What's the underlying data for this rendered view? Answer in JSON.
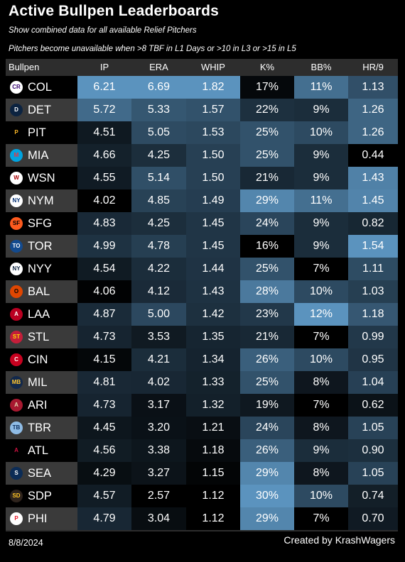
{
  "title": "Active Bullpen Leaderboards",
  "subtitle": "Show combined data for all available Relief Pitchers",
  "note": "Pitchers become unavailable when >8 TBF in L1 Days or >10 in L3 or >15 in L5",
  "footer": {
    "date": "8/8/2024",
    "credit": "Created by KrashWagers"
  },
  "chart_data": {
    "type": "table",
    "columns": [
      "Bullpen",
      "IP",
      "ERA",
      "WHIP",
      "K%",
      "BB%",
      "HR/9"
    ],
    "color_scale": {
      "low": "#000000",
      "high": "#5b93be",
      "mid": "#22384a"
    },
    "rows": [
      {
        "team": "COL",
        "logo": "rockies-logo",
        "IP": "6.21",
        "ERA": "6.69",
        "WHIP": "1.82",
        "K%": "17%",
        "BB%": "11%",
        "HR/9": "1.13"
      },
      {
        "team": "DET",
        "logo": "tigers-logo",
        "IP": "5.72",
        "ERA": "5.33",
        "WHIP": "1.57",
        "K%": "22%",
        "BB%": "9%",
        "HR/9": "1.26"
      },
      {
        "team": "PIT",
        "logo": "pirates-logo",
        "IP": "4.51",
        "ERA": "5.05",
        "WHIP": "1.53",
        "K%": "25%",
        "BB%": "10%",
        "HR/9": "1.26"
      },
      {
        "team": "MIA",
        "logo": "marlins-logo",
        "IP": "4.66",
        "ERA": "4.25",
        "WHIP": "1.50",
        "K%": "25%",
        "BB%": "9%",
        "HR/9": "0.44"
      },
      {
        "team": "WSN",
        "logo": "nationals-logo",
        "IP": "4.55",
        "ERA": "5.14",
        "WHIP": "1.50",
        "K%": "21%",
        "BB%": "9%",
        "HR/9": "1.43"
      },
      {
        "team": "NYM",
        "logo": "mets-logo",
        "IP": "4.02",
        "ERA": "4.85",
        "WHIP": "1.49",
        "K%": "29%",
        "BB%": "11%",
        "HR/9": "1.45"
      },
      {
        "team": "SFG",
        "logo": "giants-logo",
        "IP": "4.83",
        "ERA": "4.25",
        "WHIP": "1.45",
        "K%": "24%",
        "BB%": "9%",
        "HR/9": "0.82"
      },
      {
        "team": "TOR",
        "logo": "bluejays-logo",
        "IP": "4.99",
        "ERA": "4.78",
        "WHIP": "1.45",
        "K%": "16%",
        "BB%": "9%",
        "HR/9": "1.54"
      },
      {
        "team": "NYY",
        "logo": "yankees-logo",
        "IP": "4.54",
        "ERA": "4.22",
        "WHIP": "1.44",
        "K%": "25%",
        "BB%": "7%",
        "HR/9": "1.11"
      },
      {
        "team": "BAL",
        "logo": "orioles-logo",
        "IP": "4.06",
        "ERA": "4.12",
        "WHIP": "1.43",
        "K%": "28%",
        "BB%": "10%",
        "HR/9": "1.03"
      },
      {
        "team": "LAA",
        "logo": "angels-logo",
        "IP": "4.87",
        "ERA": "5.00",
        "WHIP": "1.42",
        "K%": "23%",
        "BB%": "12%",
        "HR/9": "1.18"
      },
      {
        "team": "STL",
        "logo": "cardinals-logo",
        "IP": "4.73",
        "ERA": "3.53",
        "WHIP": "1.35",
        "K%": "21%",
        "BB%": "7%",
        "HR/9": "0.99"
      },
      {
        "team": "CIN",
        "logo": "reds-logo",
        "IP": "4.15",
        "ERA": "4.21",
        "WHIP": "1.34",
        "K%": "26%",
        "BB%": "10%",
        "HR/9": "0.95"
      },
      {
        "team": "MIL",
        "logo": "brewers-logo",
        "IP": "4.81",
        "ERA": "4.02",
        "WHIP": "1.33",
        "K%": "25%",
        "BB%": "8%",
        "HR/9": "1.04"
      },
      {
        "team": "ARI",
        "logo": "diamondbacks-logo",
        "IP": "4.73",
        "ERA": "3.17",
        "WHIP": "1.32",
        "K%": "19%",
        "BB%": "7%",
        "HR/9": "0.62"
      },
      {
        "team": "TBR",
        "logo": "rays-logo",
        "IP": "4.45",
        "ERA": "3.20",
        "WHIP": "1.21",
        "K%": "24%",
        "BB%": "8%",
        "HR/9": "1.05"
      },
      {
        "team": "ATL",
        "logo": "braves-logo",
        "IP": "4.56",
        "ERA": "3.38",
        "WHIP": "1.18",
        "K%": "26%",
        "BB%": "9%",
        "HR/9": "0.90"
      },
      {
        "team": "SEA",
        "logo": "mariners-logo",
        "IP": "4.29",
        "ERA": "3.27",
        "WHIP": "1.15",
        "K%": "29%",
        "BB%": "8%",
        "HR/9": "1.05"
      },
      {
        "team": "SDP",
        "logo": "padres-logo",
        "IP": "4.57",
        "ERA": "2.57",
        "WHIP": "1.12",
        "K%": "30%",
        "BB%": "10%",
        "HR/9": "0.74"
      },
      {
        "team": "PHI",
        "logo": "phillies-logo",
        "IP": "4.79",
        "ERA": "3.04",
        "WHIP": "1.12",
        "K%": "29%",
        "BB%": "7%",
        "HR/9": "0.70"
      }
    ]
  },
  "logo_colors": {
    "COL": {
      "bg": "#ffffff",
      "fg": "#33006f",
      "glyph": "CR"
    },
    "DET": {
      "bg": "#0c2340",
      "fg": "#ffffff",
      "glyph": "D"
    },
    "PIT": {
      "bg": "#000000",
      "fg": "#fdb827",
      "glyph": "P"
    },
    "MIA": {
      "bg": "#00a3e0",
      "fg": "#ef3340",
      "glyph": "M"
    },
    "WSN": {
      "bg": "#ffffff",
      "fg": "#ab0003",
      "glyph": "W"
    },
    "NYM": {
      "bg": "#ffffff",
      "fg": "#002d72",
      "glyph": "NY"
    },
    "SFG": {
      "bg": "#fd5a1e",
      "fg": "#000000",
      "glyph": "SF"
    },
    "TOR": {
      "bg": "#134a8e",
      "fg": "#ffffff",
      "glyph": "TO"
    },
    "NYY": {
      "bg": "#ffffff",
      "fg": "#0c2340",
      "glyph": "NY"
    },
    "BAL": {
      "bg": "#df4601",
      "fg": "#000000",
      "glyph": "O"
    },
    "LAA": {
      "bg": "#ba0021",
      "fg": "#ffffff",
      "glyph": "A"
    },
    "STL": {
      "bg": "#c41e3a",
      "fg": "#fedb00",
      "glyph": "ST"
    },
    "CIN": {
      "bg": "#c6011f",
      "fg": "#ffffff",
      "glyph": "C"
    },
    "MIL": {
      "bg": "#12284b",
      "fg": "#ffc52f",
      "glyph": "MB"
    },
    "ARI": {
      "bg": "#a71930",
      "fg": "#e3d4ad",
      "glyph": "A"
    },
    "TBR": {
      "bg": "#8fbce6",
      "fg": "#092c5c",
      "glyph": "TB"
    },
    "ATL": {
      "bg": "#000000",
      "fg": "#ce1141",
      "glyph": "A"
    },
    "SEA": {
      "bg": "#0c2c56",
      "fg": "#ffffff",
      "glyph": "S"
    },
    "SDP": {
      "bg": "#2f241d",
      "fg": "#ffc425",
      "glyph": "SD"
    },
    "PHI": {
      "bg": "#ffffff",
      "fg": "#e81828",
      "glyph": "P"
    }
  }
}
